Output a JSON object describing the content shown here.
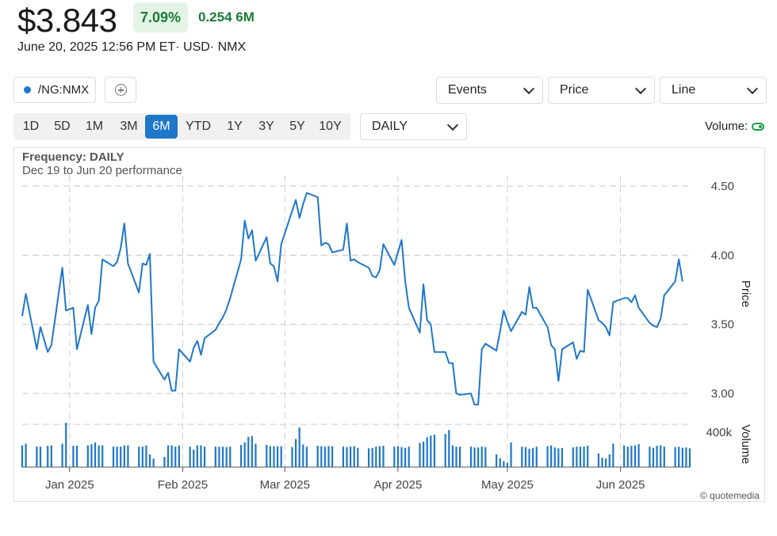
{
  "quote": {
    "price": "$3.843",
    "change_pct": "7.09%",
    "change_abs": "0.254",
    "volume": "6M",
    "meta": "June 20, 2025 12:56 PM ET· USD· NMX"
  },
  "toolbar": {
    "symbol": "/NG:NMX",
    "add_compare_icon": "plus-circle-icon",
    "events": "Events",
    "price_select": "Price",
    "chart_type": "Line",
    "frequency_select": "DAILY",
    "volume_label": "Volume:",
    "ranges": [
      "1D",
      "5D",
      "1M",
      "3M",
      "6M",
      "YTD",
      "1Y",
      "3Y",
      "5Y",
      "10Y"
    ],
    "active_range": "6M"
  },
  "colors": {
    "line": "#1f77c9",
    "positive": "#1c7a35",
    "positive_bg": "#e3f4e6",
    "active_range": "#1f77c9"
  },
  "chart_data": {
    "type": "line",
    "frequency_label": "Frequency: DAILY",
    "performance_label": "Dec 19 to Jun 20 performance",
    "credit": "© quotemedia",
    "x_tick_labels": [
      "Jan 2025",
      "Feb 2025",
      "Mar 2025",
      "Apr 2025",
      "May 2025",
      "Jun 2025"
    ],
    "x_tick_dates": [
      "2025-01-01",
      "2025-02-01",
      "2025-03-01",
      "2025-04-01",
      "2025-05-01",
      "2025-06-01"
    ],
    "y_label": "Price",
    "y_ticks": [
      "3.00",
      "3.50",
      "4.00",
      "4.50"
    ],
    "ylim": [
      2.9,
      4.55
    ],
    "volume_label": "Volume",
    "volume_tick": "400k",
    "grid": true,
    "series": [
      {
        "dates": [
          "2024-12-19",
          "2024-12-20",
          "2024-12-23",
          "2024-12-24",
          "2024-12-26",
          "2024-12-27",
          "2024-12-30",
          "2024-12-31",
          "2025-01-02",
          "2025-01-03",
          "2025-01-06",
          "2025-01-07",
          "2025-01-08",
          "2025-01-09",
          "2025-01-10",
          "2025-01-13",
          "2025-01-14",
          "2025-01-15",
          "2025-01-16",
          "2025-01-17",
          "2025-01-20",
          "2025-01-21",
          "2025-01-22",
          "2025-01-23",
          "2025-01-24",
          "2025-01-27",
          "2025-01-28",
          "2025-01-29",
          "2025-01-30",
          "2025-01-31",
          "2025-02-03",
          "2025-02-04",
          "2025-02-05",
          "2025-02-06",
          "2025-02-07",
          "2025-02-10",
          "2025-02-11",
          "2025-02-12",
          "2025-02-13",
          "2025-02-14",
          "2025-02-17",
          "2025-02-18",
          "2025-02-19",
          "2025-02-20",
          "2025-02-21",
          "2025-02-24",
          "2025-02-25",
          "2025-02-26",
          "2025-02-27",
          "2025-02-28",
          "2025-03-03",
          "2025-03-04",
          "2025-03-05",
          "2025-03-06",
          "2025-03-07",
          "2025-03-10",
          "2025-03-11",
          "2025-03-12",
          "2025-03-13",
          "2025-03-14",
          "2025-03-17",
          "2025-03-18",
          "2025-03-19",
          "2025-03-20",
          "2025-03-21",
          "2025-03-24",
          "2025-03-25",
          "2025-03-26",
          "2025-03-27",
          "2025-03-28",
          "2025-03-31",
          "2025-04-01",
          "2025-04-02",
          "2025-04-03",
          "2025-04-04",
          "2025-04-07",
          "2025-04-08",
          "2025-04-09",
          "2025-04-10",
          "2025-04-11",
          "2025-04-14",
          "2025-04-15",
          "2025-04-16",
          "2025-04-17",
          "2025-04-18",
          "2025-04-21",
          "2025-04-22",
          "2025-04-23",
          "2025-04-24",
          "2025-04-25",
          "2025-04-28",
          "2025-04-29",
          "2025-04-30",
          "2025-05-01",
          "2025-05-02",
          "2025-05-05",
          "2025-05-06",
          "2025-05-07",
          "2025-05-08",
          "2025-05-09",
          "2025-05-12",
          "2025-05-13",
          "2025-05-14",
          "2025-05-15",
          "2025-05-16",
          "2025-05-19",
          "2025-05-20",
          "2025-05-21",
          "2025-05-22",
          "2025-05-23",
          "2025-05-26",
          "2025-05-27",
          "2025-05-28",
          "2025-05-29",
          "2025-05-30",
          "2025-06-02",
          "2025-06-03",
          "2025-06-04",
          "2025-06-05",
          "2025-06-06",
          "2025-06-09",
          "2025-06-10",
          "2025-06-11",
          "2025-06-12",
          "2025-06-13",
          "2025-06-16",
          "2025-06-17",
          "2025-06-18",
          "2025-06-19",
          "2025-06-20"
        ],
        "prices": [
          3.56,
          3.72,
          3.32,
          3.48,
          3.3,
          3.35,
          3.91,
          3.6,
          3.62,
          3.32,
          3.64,
          3.43,
          3.62,
          3.67,
          3.97,
          3.92,
          3.95,
          4.05,
          4.23,
          3.94,
          3.73,
          3.94,
          3.93,
          4.01,
          3.23,
          3.1,
          3.15,
          3.02,
          3.02,
          3.32,
          3.23,
          3.33,
          3.38,
          3.28,
          3.4,
          3.46,
          3.51,
          3.55,
          3.61,
          3.69,
          3.97,
          4.25,
          4.12,
          4.18,
          3.96,
          4.13,
          3.94,
          3.92,
          3.81,
          4.08,
          4.32,
          4.4,
          4.27,
          4.37,
          4.45,
          4.42,
          4.07,
          4.09,
          4.08,
          4.02,
          4.04,
          4.23,
          3.96,
          3.97,
          3.95,
          3.91,
          3.85,
          3.84,
          3.89,
          4.08,
          3.93,
          4.02,
          4.11,
          3.81,
          3.62,
          3.44,
          3.79,
          3.53,
          3.5,
          3.3,
          3.3,
          3.22,
          3.22,
          3.0,
          2.99,
          3.0,
          2.92,
          2.92,
          3.32,
          3.36,
          3.31,
          3.45,
          3.6,
          3.52,
          3.45,
          3.59,
          3.57,
          3.77,
          3.62,
          3.62,
          3.48,
          3.35,
          3.32,
          3.09,
          3.32,
          3.37,
          3.25,
          3.31,
          3.3,
          3.75,
          3.53,
          3.51,
          3.48,
          3.42,
          3.66,
          3.69,
          3.69,
          3.66,
          3.71,
          3.62,
          3.51,
          3.49,
          3.48,
          3.54,
          3.71,
          3.81,
          3.97,
          3.81
        ],
        "volumes": [
          255,
          275,
          240,
          240,
          250,
          255,
          275,
          520,
          250,
          250,
          255,
          270,
          290,
          255,
          255,
          240,
          240,
          240,
          255,
          255,
          240,
          240,
          255,
          150,
          100,
          120,
          255,
          255,
          240,
          255,
          240,
          205,
          255,
          255,
          240,
          240,
          240,
          240,
          235,
          240,
          260,
          290,
          355,
          365,
          275,
          260,
          245,
          245,
          245,
          245,
          235,
          330,
          465,
          265,
          240,
          250,
          245,
          240,
          245,
          245,
          240,
          235,
          240,
          245,
          225,
          220,
          225,
          240,
          245,
          250,
          240,
          245,
          235,
          225,
          240,
          285,
          300,
          350,
          370,
          380,
          390,
          435,
          255,
          240,
          240,
          240,
          230,
          230,
          240,
          235,
          150,
          105,
          70,
          50,
          290,
          240,
          235,
          215,
          225,
          240,
          245,
          255,
          230,
          220,
          225,
          230,
          240,
          240,
          240,
          250,
          160,
          110,
          100,
          150,
          275,
          255,
          240,
          250,
          255,
          270,
          240,
          225,
          250,
          255,
          240,
          235,
          240,
          225,
          230,
          220
        ]
      }
    ]
  }
}
